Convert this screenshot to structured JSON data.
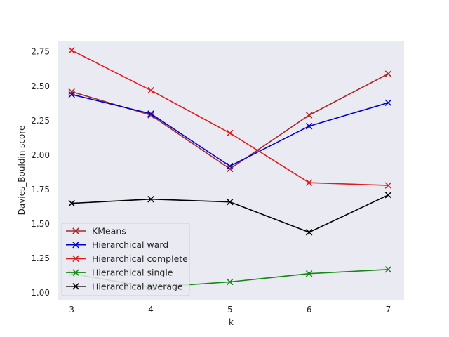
{
  "chart_data": {
    "type": "line",
    "title": "",
    "xlabel": "k",
    "ylabel": "Davies_Bouldin score",
    "x": [
      3,
      4,
      5,
      6,
      7
    ],
    "xlim": [
      2.83,
      7.2
    ],
    "ylim": [
      0.95,
      2.83
    ],
    "xticks": [
      3,
      4,
      5,
      6,
      7
    ],
    "yticks": [
      "1.00",
      "1.25",
      "1.50",
      "1.75",
      "2.00",
      "2.25",
      "2.50",
      "2.75"
    ],
    "grid": false,
    "legend_position": "lower-left",
    "marker": "x",
    "background": "#eaeaf2",
    "series": [
      {
        "name": "KMeans",
        "color": "#a52a2a",
        "values": [
          2.46,
          2.29,
          1.9,
          2.29,
          2.59
        ]
      },
      {
        "name": "Hierarchical ward",
        "color": "#0000cc",
        "values": [
          2.44,
          2.3,
          1.92,
          2.21,
          2.38
        ]
      },
      {
        "name": "Hierarchical complete",
        "color": "#e31a1c",
        "values": [
          2.76,
          2.47,
          2.16,
          1.8,
          1.78
        ]
      },
      {
        "name": "Hierarchical single",
        "color": "#118811",
        "values": [
          1.14,
          1.04,
          1.08,
          1.14,
          1.17
        ]
      },
      {
        "name": "Hierarchical average",
        "color": "#000000",
        "values": [
          1.65,
          1.68,
          1.66,
          1.44,
          1.71
        ]
      }
    ]
  }
}
